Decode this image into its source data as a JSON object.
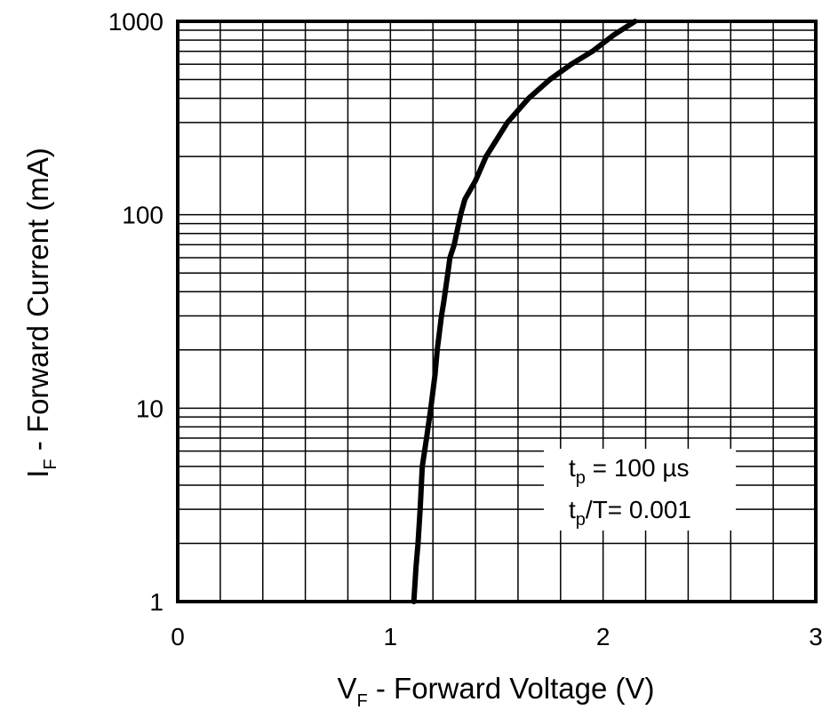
{
  "chart_data": {
    "type": "line",
    "title": "",
    "x_scale": "linear",
    "y_scale": "log",
    "xlim": [
      0,
      3
    ],
    "ylim": [
      1,
      1000
    ],
    "grid": true,
    "x_ticks": [
      "0",
      "1",
      "2",
      "3"
    ],
    "y_ticks": [
      "1",
      "10",
      "100",
      "1000"
    ],
    "xlabel": {
      "main": "V",
      "sub": "F",
      "rest": " - Forward Voltage (V)"
    },
    "ylabel": {
      "main": "I",
      "sub": "F",
      "rest": " - Forward Current (mA)"
    },
    "annotation": {
      "line1": {
        "main": "t",
        "sub": "p",
        "rest": " = 100 µs"
      },
      "line2": {
        "main": "t",
        "sub": "p",
        "rest": "/T= 0.001"
      }
    },
    "series": [
      {
        "x": [
          1.11,
          1.12,
          1.13,
          1.14,
          1.15,
          1.17,
          1.19,
          1.21,
          1.22,
          1.24,
          1.25,
          1.27,
          1.28,
          1.3,
          1.33,
          1.35,
          1.4,
          1.45,
          1.55,
          1.65,
          1.75,
          1.85,
          1.95,
          2.05,
          2.15
        ],
        "y": [
          1,
          1.5,
          2,
          3,
          5,
          7,
          10,
          15,
          20,
          30,
          35,
          50,
          60,
          70,
          100,
          120,
          150,
          200,
          300,
          400,
          500,
          600,
          700,
          850,
          1000
        ]
      }
    ],
    "colors": {
      "line": "#000000",
      "grid": "#000000",
      "background": "#ffffff"
    }
  }
}
